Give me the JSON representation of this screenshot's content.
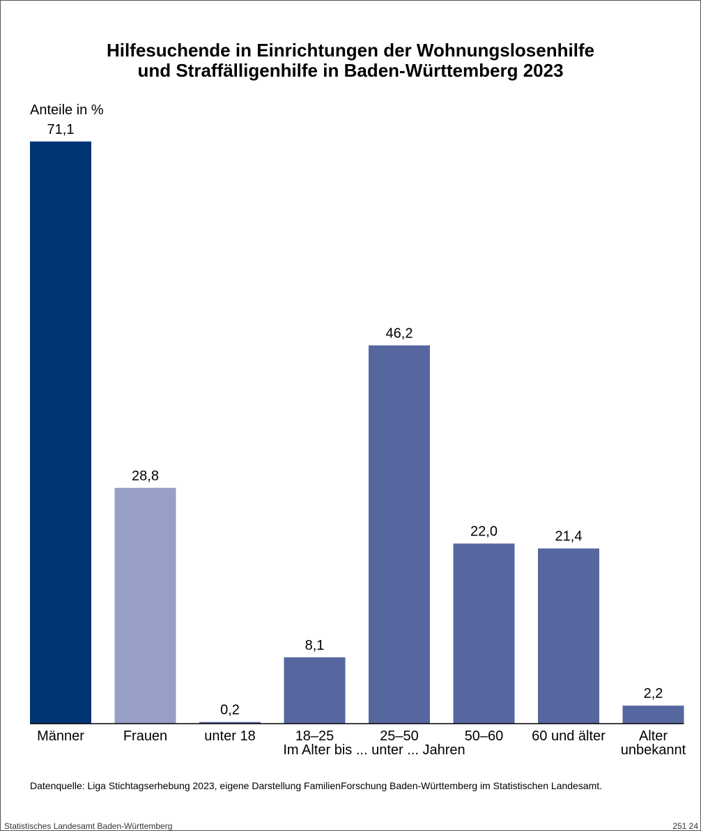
{
  "title_line1": "Hilfesuchende in Einrichtungen der Wohnungslosenhilfe",
  "title_line2": "und Straffälligenhilfe in Baden-Württemberg 2023",
  "footer": {
    "source": "Datenquelle: Liga Stichtagserhebung 2023, eigene Darstellung FamilienForschung Baden-Württemberg im Statistischen Landesamt.",
    "publisher": "Statistisches Landesamt Baden-Württemberg",
    "code": "251 24"
  },
  "chart_data": {
    "type": "bar",
    "title": "Hilfesuchende in Einrichtungen der Wohnungslosenhilfe und Straffälligenhilfe in Baden-Württemberg 2023",
    "ylabel": "Anteile in %",
    "xgroup_label": "Im Alter bis ... unter ... Jahren",
    "categories": [
      "Männer",
      "Frauen",
      "unter 18",
      "18–25",
      "25–50",
      "50–60",
      "60 und älter",
      "Alter unbekannt"
    ],
    "category_lines": [
      [
        "Männer"
      ],
      [
        "Frauen"
      ],
      [
        "unter 18"
      ],
      [
        "18–25"
      ],
      [
        "25–50"
      ],
      [
        "50–60"
      ],
      [
        "60 und älter"
      ],
      [
        "Alter",
        "unbekannt"
      ]
    ],
    "values": [
      71.1,
      28.8,
      0.2,
      8.1,
      46.2,
      22.0,
      21.4,
      2.2
    ],
    "value_labels": [
      "71,1",
      "28,8",
      "0,2",
      "8,1",
      "46,2",
      "22,0",
      "21,4",
      "2,2"
    ],
    "colors": [
      "#003575",
      "#979fc6",
      "#5667a0",
      "#5667a0",
      "#5667a0",
      "#5667a0",
      "#5667a0",
      "#5667a0"
    ],
    "ylim": [
      0,
      71.1
    ],
    "grid": false,
    "legend": "none"
  }
}
